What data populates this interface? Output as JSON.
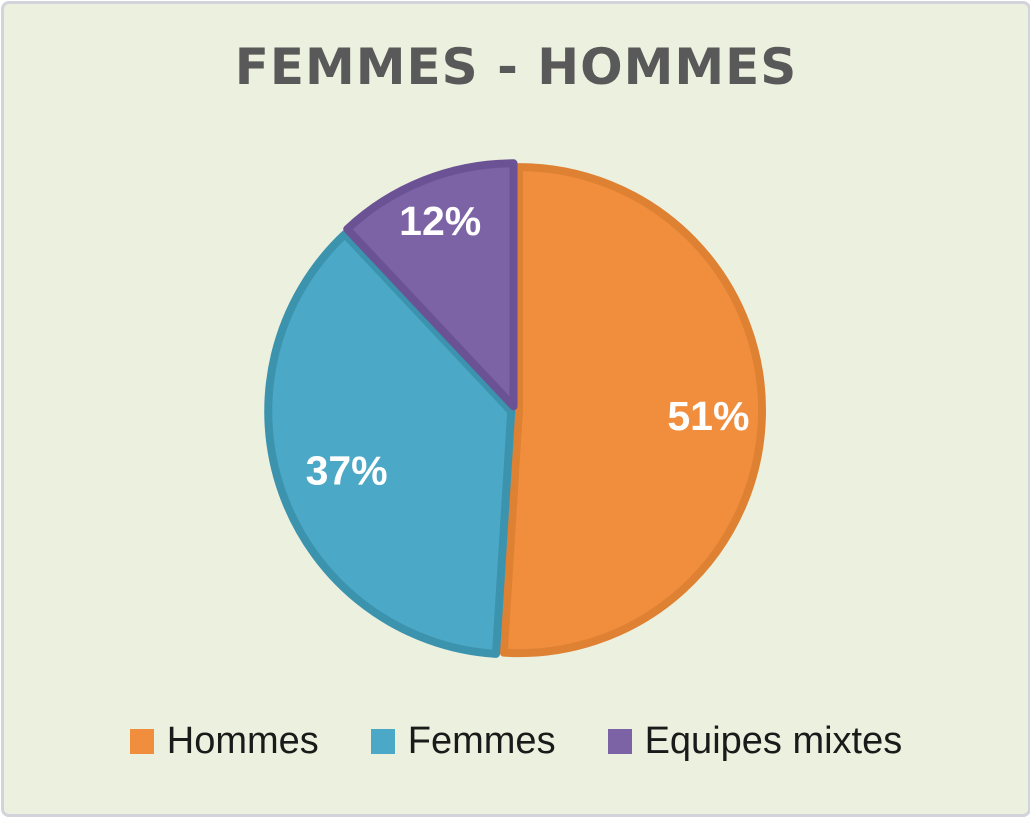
{
  "frame": {
    "background_color": "#ECF0DE",
    "border_color": "#D3D3DB"
  },
  "title": "FEMMES - HOMMES",
  "title_color": "#595959",
  "chart_data": {
    "type": "pie",
    "title": "FEMMES - HOMMES",
    "categories": [
      "Hommes",
      "Femmes",
      "Equipes mixtes"
    ],
    "values": [
      51,
      37,
      12
    ],
    "unit": "%",
    "labels": [
      "51%",
      "37%",
      "12%"
    ],
    "label_color": "#FFFFFF",
    "colors": [
      "#F08E3E",
      "#4BA8C6",
      "#7C63A6"
    ],
    "border_colors": [
      "#DE8132",
      "#3B93AE",
      "#6B5294"
    ],
    "start_angle_deg": 0,
    "direction": "clockwise",
    "exploded": true,
    "legend_position": "bottom"
  },
  "legend": {
    "items": [
      {
        "label": "Hommes",
        "color": "#F08E3E"
      },
      {
        "label": "Femmes",
        "color": "#4BA8C6"
      },
      {
        "label": "Equipes mixtes",
        "color": "#7C63A6"
      }
    ]
  }
}
